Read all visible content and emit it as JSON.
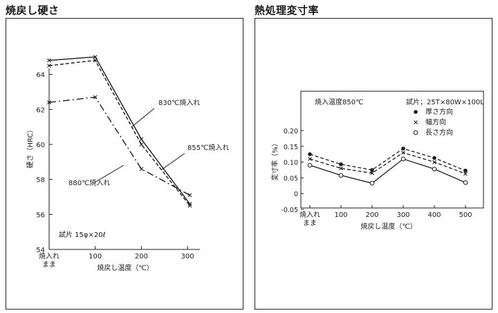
{
  "chart_data": [
    {
      "type": "line",
      "title": "焼戻し硬さ",
      "xlabel": "焼戻し温度（℃）",
      "ylabel": "硬さ（HRC）",
      "x_categories": [
        "焼入れ\nまま",
        "100",
        "200",
        "300"
      ],
      "x_values": [
        0,
        100,
        200,
        300
      ],
      "ylim": [
        54,
        66
      ],
      "yticks": [
        54,
        56,
        58,
        60,
        62,
        64
      ],
      "grid": false,
      "note": "試片 15φ×20ℓ",
      "series": [
        {
          "name": "830℃焼入れ",
          "style": "solid",
          "x": [
            0,
            100,
            200,
            305
          ],
          "y": [
            64.8,
            65.0,
            60.3,
            56.6
          ]
        },
        {
          "name": "855℃焼入れ",
          "style": "dashed",
          "x": [
            0,
            100,
            200,
            305
          ],
          "y": [
            64.5,
            64.8,
            60.0,
            56.5
          ]
        },
        {
          "name": "880℃焼入れ",
          "style": "dashdot",
          "x": [
            0,
            100,
            200,
            305
          ],
          "y": [
            62.4,
            62.7,
            58.6,
            57.1
          ]
        }
      ]
    },
    {
      "type": "line",
      "title": "熱処理変寸率",
      "xlabel": "焼戻し温度（℃）",
      "ylabel": "変寸率（%）",
      "x_categories": [
        "焼入れ\nまま",
        "100",
        "200",
        "300",
        "400",
        "500"
      ],
      "x_values": [
        0,
        100,
        200,
        300,
        400,
        500
      ],
      "ylim": [
        -0.05,
        0.2
      ],
      "yticks": [
        -0.05,
        0,
        0.05,
        0.1,
        0.15,
        0.2
      ],
      "grid": false,
      "note": "焼入温度850℃",
      "note2": "試片；25T×80W×100L",
      "series": [
        {
          "name": "厚さ方向",
          "marker": "filled-circle",
          "style": "dashed",
          "y": [
            0.125,
            0.093,
            0.075,
            0.143,
            0.113,
            0.073
          ]
        },
        {
          "name": "幅方向",
          "marker": "x",
          "style": "dashed",
          "y": [
            0.11,
            0.08,
            0.065,
            0.13,
            0.1,
            0.063
          ]
        },
        {
          "name": "長さ方向",
          "marker": "open-circle",
          "style": "solid",
          "y": [
            0.09,
            0.058,
            0.033,
            0.11,
            0.078,
            0.035
          ]
        }
      ]
    }
  ]
}
